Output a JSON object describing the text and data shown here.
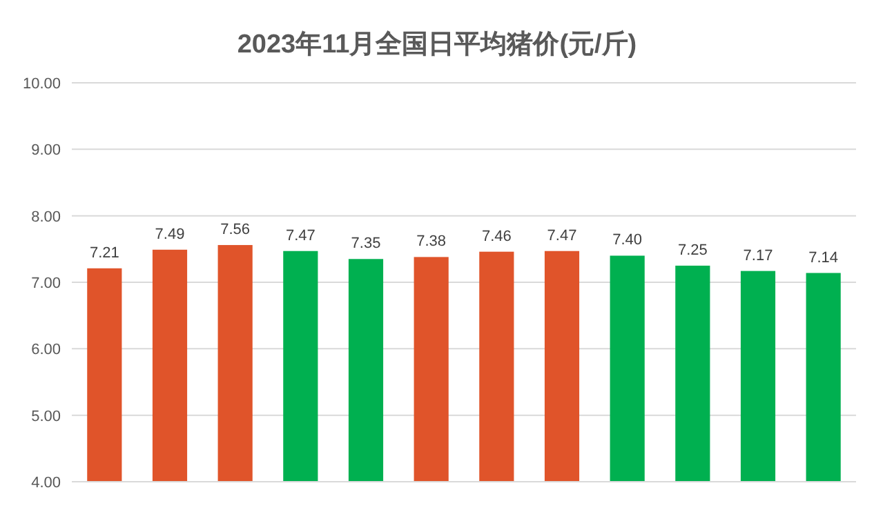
{
  "chart_data": {
    "type": "bar",
    "title": "2023年11月全国日平均猪价(元/斤)",
    "categories": [
      null,
      null,
      null,
      null,
      null,
      null,
      null,
      null,
      null,
      null,
      null,
      null
    ],
    "values": [
      7.21,
      7.49,
      7.56,
      7.47,
      7.35,
      7.38,
      7.46,
      7.47,
      7.4,
      7.25,
      7.17,
      7.14
    ],
    "colors": [
      "#e0542a",
      "#e0542a",
      "#e0542a",
      "#00b050",
      "#00b050",
      "#e0542a",
      "#e0542a",
      "#e0542a",
      "#00b050",
      "#00b050",
      "#00b050",
      "#00b050"
    ],
    "ylim": [
      4,
      10
    ],
    "yticks": [
      {
        "value": 4,
        "label": "4.00"
      },
      {
        "value": 5,
        "label": "5.00"
      },
      {
        "value": 6,
        "label": "6.00"
      },
      {
        "value": 7,
        "label": "7.00"
      },
      {
        "value": 8,
        "label": "8.00"
      },
      {
        "value": 9,
        "label": "9.00"
      },
      {
        "value": 10,
        "label": "10.00"
      }
    ],
    "value_labels": [
      "7.21",
      "7.49",
      "7.56",
      "7.47",
      "7.35",
      "7.38",
      "7.46",
      "7.47",
      "7.40",
      "7.25",
      "7.17",
      "7.14"
    ],
    "grid": "y"
  }
}
